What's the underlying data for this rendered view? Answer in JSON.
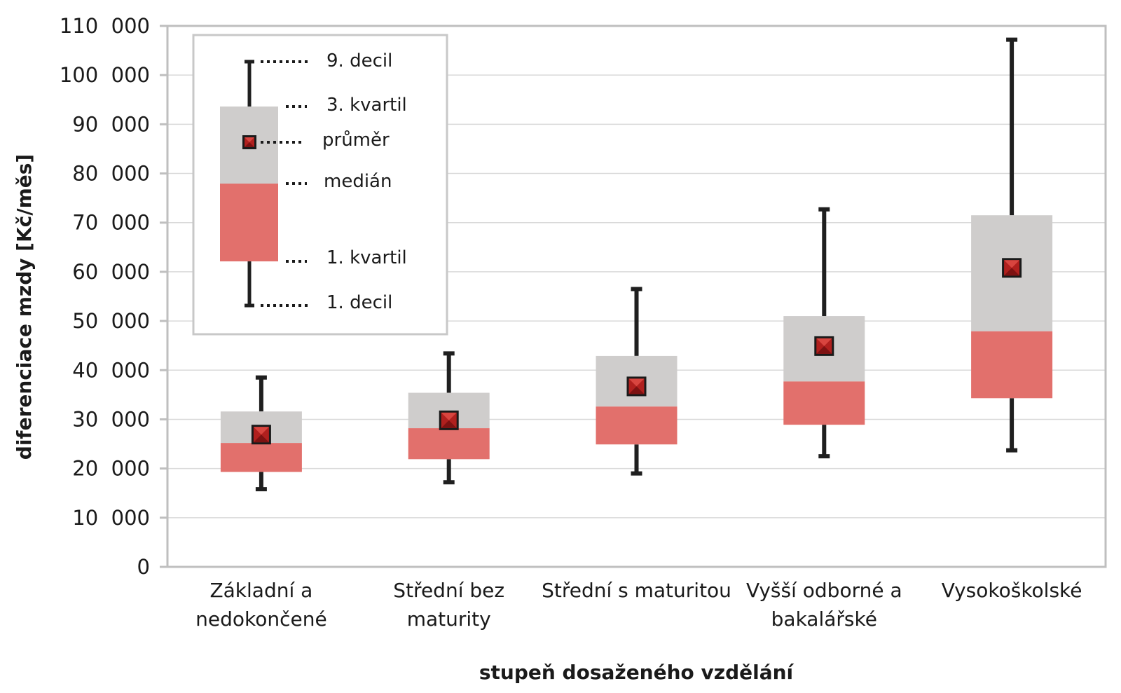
{
  "chart_data": {
    "type": "box",
    "xlabel": "stupeň dosaženého vzdělání",
    "ylabel": "diferenciace mzdy [Kč/měs]",
    "ylim": [
      0,
      110000
    ],
    "yticks": [
      0,
      10000,
      20000,
      30000,
      40000,
      50000,
      60000,
      70000,
      80000,
      90000,
      100000,
      110000
    ],
    "ytick_labels": [
      "0",
      "10  000",
      "20  000",
      "30  000",
      "40  000",
      "50  000",
      "60  000",
      "70  000",
      "80  000",
      "90  000",
      "100  000",
      "110  000"
    ],
    "grid": true,
    "categories": [
      [
        "Základní a",
        "nedokončené"
      ],
      [
        "Střední bez",
        "maturity"
      ],
      [
        "Střední s maturitou"
      ],
      [
        "Vyšší odborné a",
        "bakalářské"
      ],
      [
        "Vysokoškolské"
      ]
    ],
    "series": [
      {
        "decile_1": 15800,
        "quartile_1": 19300,
        "median": 25200,
        "quartile_3": 31600,
        "decile_9": 38500,
        "mean": 26900
      },
      {
        "decile_1": 17200,
        "quartile_1": 21900,
        "median": 28200,
        "quartile_3": 35400,
        "decile_9": 43400,
        "mean": 29800
      },
      {
        "decile_1": 19000,
        "quartile_1": 24900,
        "median": 32600,
        "quartile_3": 42900,
        "decile_9": 56500,
        "mean": 36700
      },
      {
        "decile_1": 22500,
        "quartile_1": 28900,
        "median": 37700,
        "quartile_3": 51000,
        "decile_9": 72700,
        "mean": 44900
      },
      {
        "decile_1": 23700,
        "quartile_1": 34300,
        "median": 47900,
        "quartile_3": 71500,
        "decile_9": 107200,
        "mean": 60800
      }
    ],
    "colors": {
      "upper_box": "#cfcdcc",
      "lower_box": "#e2706c",
      "whisker": "#1f1f1f",
      "mean_marker": "#b0201e",
      "grid": "#d9d9d9",
      "frame": "#bfbfbf"
    },
    "legend": {
      "position": "top-left",
      "labels": {
        "decile_9": "9. decil",
        "quartile_3": "3. kvartil",
        "mean": "průměr",
        "median": "medián",
        "quartile_1": "1. kvartil",
        "decile_1": "1. decil"
      }
    }
  }
}
